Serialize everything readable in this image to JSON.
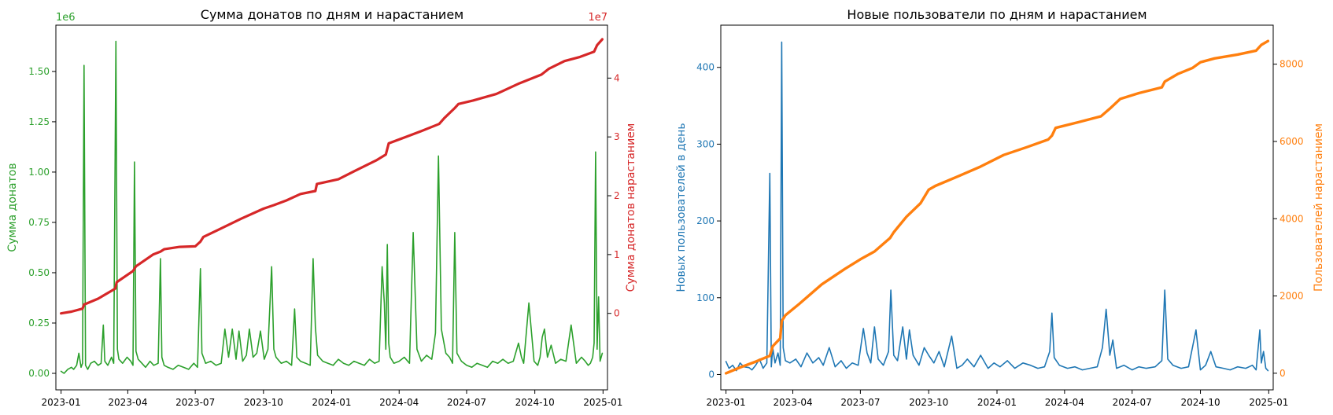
{
  "chart_data": [
    {
      "type": "line",
      "title": "Сумма донатов по дням и нарастанием",
      "xlabel": "",
      "ylabel_left": "Сумма донатов",
      "ylabel_right": "Сумма донатов нарастанием",
      "left_axis_multiplier": "1e6",
      "right_axis_multiplier": "1e7",
      "left_axis_color": "#2ca02c",
      "right_axis_color": "#d62728",
      "x_range": [
        "2022-12-25",
        "2025-01-07"
      ],
      "x_ticks": [
        "2023-01",
        "2023-04",
        "2023-07",
        "2023-10",
        "2024-01",
        "2024-04",
        "2024-07",
        "2024-10",
        "2025-01"
      ],
      "ylim_left": [
        -0.082,
        1.73
      ],
      "yticks_left": [
        "0.00",
        "0.25",
        "0.50",
        "0.75",
        "1.00",
        "1.25",
        "1.50"
      ],
      "ylim_right": [
        -1.3,
        4.9
      ],
      "yticks_right": [
        "0",
        "1",
        "2",
        "3",
        "4"
      ],
      "grid": false,
      "series": [
        {
          "axis": "left",
          "color": "#2ca02c",
          "x": [
            "2023-01-01",
            "2023-01-05",
            "2023-01-10",
            "2023-01-15",
            "2023-01-18",
            "2023-01-22",
            "2023-01-25",
            "2023-01-28",
            "2023-01-30",
            "2023-02-01",
            "2023-02-03",
            "2023-02-06",
            "2023-02-10",
            "2023-02-15",
            "2023-02-20",
            "2023-02-24",
            "2023-02-27",
            "2023-03-01",
            "2023-03-05",
            "2023-03-10",
            "2023-03-13",
            "2023-03-16",
            "2023-03-18",
            "2023-03-20",
            "2023-03-25",
            "2023-03-31",
            "2023-04-05",
            "2023-04-08",
            "2023-04-10",
            "2023-04-12",
            "2023-04-15",
            "2023-04-20",
            "2023-04-25",
            "2023-05-01",
            "2023-05-06",
            "2023-05-12",
            "2023-05-15",
            "2023-05-17",
            "2023-05-20",
            "2023-05-25",
            "2023-06-01",
            "2023-06-08",
            "2023-06-15",
            "2023-06-22",
            "2023-06-29",
            "2023-07-04",
            "2023-07-08",
            "2023-07-10",
            "2023-07-15",
            "2023-07-22",
            "2023-07-29",
            "2023-08-05",
            "2023-08-10",
            "2023-08-15",
            "2023-08-20",
            "2023-08-25",
            "2023-08-29",
            "2023-09-03",
            "2023-09-08",
            "2023-09-12",
            "2023-09-17",
            "2023-09-22",
            "2023-09-27",
            "2023-10-02",
            "2023-10-07",
            "2023-10-12",
            "2023-10-15",
            "2023-10-18",
            "2023-10-25",
            "2023-11-01",
            "2023-11-08",
            "2023-11-12",
            "2023-11-15",
            "2023-11-20",
            "2023-11-27",
            "2023-12-03",
            "2023-12-07",
            "2023-12-10",
            "2023-12-13",
            "2023-12-20",
            "2023-12-27",
            "2024-01-03",
            "2024-01-10",
            "2024-01-17",
            "2024-01-24",
            "2024-01-31",
            "2024-02-07",
            "2024-02-14",
            "2024-02-21",
            "2024-02-28",
            "2024-03-05",
            "2024-03-09",
            "2024-03-12",
            "2024-03-14",
            "2024-03-16",
            "2024-03-18",
            "2024-03-20",
            "2024-03-25",
            "2024-04-01",
            "2024-04-08",
            "2024-04-15",
            "2024-04-20",
            "2024-04-25",
            "2024-05-01",
            "2024-05-08",
            "2024-05-15",
            "2024-05-20",
            "2024-05-24",
            "2024-05-28",
            "2024-06-03",
            "2024-06-08",
            "2024-06-12",
            "2024-06-15",
            "2024-06-18",
            "2024-06-24",
            "2024-07-01",
            "2024-07-08",
            "2024-07-15",
            "2024-07-22",
            "2024-07-29",
            "2024-08-05",
            "2024-08-12",
            "2024-08-19",
            "2024-08-26",
            "2024-09-02",
            "2024-09-09",
            "2024-09-13",
            "2024-09-16",
            "2024-09-23",
            "2024-09-30",
            "2024-10-05",
            "2024-10-08",
            "2024-10-11",
            "2024-10-14",
            "2024-10-18",
            "2024-10-23",
            "2024-10-29",
            "2024-11-05",
            "2024-11-12",
            "2024-11-19",
            "2024-11-26",
            "2024-12-03",
            "2024-12-08",
            "2024-12-12",
            "2024-12-15",
            "2024-12-18",
            "2024-12-20",
            "2024-12-22",
            "2024-12-24",
            "2024-12-26",
            "2024-12-28",
            "2024-12-31"
          ],
          "y": [
            0.01,
            0.0,
            0.02,
            0.03,
            0.02,
            0.04,
            0.1,
            0.03,
            0.05,
            1.53,
            0.04,
            0.02,
            0.05,
            0.06,
            0.04,
            0.05,
            0.24,
            0.06,
            0.04,
            0.08,
            0.05,
            1.65,
            0.12,
            0.07,
            0.05,
            0.08,
            0.06,
            0.04,
            1.05,
            0.11,
            0.07,
            0.05,
            0.03,
            0.06,
            0.04,
            0.05,
            0.57,
            0.08,
            0.04,
            0.03,
            0.02,
            0.04,
            0.03,
            0.02,
            0.05,
            0.03,
            0.52,
            0.1,
            0.05,
            0.06,
            0.04,
            0.05,
            0.22,
            0.08,
            0.22,
            0.07,
            0.21,
            0.06,
            0.09,
            0.22,
            0.08,
            0.1,
            0.21,
            0.07,
            0.12,
            0.53,
            0.12,
            0.08,
            0.05,
            0.06,
            0.04,
            0.32,
            0.08,
            0.06,
            0.05,
            0.04,
            0.57,
            0.23,
            0.09,
            0.06,
            0.05,
            0.04,
            0.07,
            0.05,
            0.04,
            0.06,
            0.05,
            0.04,
            0.07,
            0.05,
            0.06,
            0.53,
            0.35,
            0.12,
            0.64,
            0.15,
            0.08,
            0.05,
            0.06,
            0.08,
            0.05,
            0.7,
            0.12,
            0.06,
            0.09,
            0.07,
            0.2,
            1.08,
            0.22,
            0.1,
            0.08,
            0.05,
            0.7,
            0.1,
            0.06,
            0.04,
            0.03,
            0.05,
            0.04,
            0.03,
            0.06,
            0.05,
            0.07,
            0.05,
            0.06,
            0.15,
            0.08,
            0.05,
            0.35,
            0.06,
            0.04,
            0.08,
            0.18,
            0.22,
            0.08,
            0.14,
            0.05,
            0.07,
            0.06,
            0.24,
            0.05,
            0.08,
            0.06,
            0.04,
            0.05,
            0.08,
            0.15,
            1.1,
            0.12,
            0.38,
            0.06,
            0.1
          ]
        },
        {
          "axis": "right",
          "color": "#d62728",
          "x": [
            "2023-01-01",
            "2023-01-15",
            "2023-01-30",
            "2023-02-01",
            "2023-02-20",
            "2023-03-15",
            "2023-03-17",
            "2023-04-08",
            "2023-04-12",
            "2023-05-05",
            "2023-05-15",
            "2023-05-20",
            "2023-06-10",
            "2023-07-01",
            "2023-07-08",
            "2023-07-12",
            "2023-08-01",
            "2023-09-01",
            "2023-10-01",
            "2023-10-15",
            "2023-11-01",
            "2023-11-20",
            "2023-12-10",
            "2023-12-12",
            "2024-01-10",
            "2024-02-01",
            "2024-03-01",
            "2024-03-14",
            "2024-03-18",
            "2024-04-10",
            "2024-05-01",
            "2024-05-25",
            "2024-06-01",
            "2024-06-15",
            "2024-06-20",
            "2024-07-10",
            "2024-08-10",
            "2024-09-10",
            "2024-10-10",
            "2024-10-20",
            "2024-11-10",
            "2024-12-01",
            "2024-12-20",
            "2024-12-24",
            "2024-12-31"
          ],
          "y": [
            0.0,
            0.03,
            0.08,
            0.15,
            0.25,
            0.42,
            0.53,
            0.72,
            0.8,
            1.0,
            1.05,
            1.09,
            1.13,
            1.14,
            1.22,
            1.3,
            1.42,
            1.61,
            1.78,
            1.84,
            1.92,
            2.03,
            2.08,
            2.2,
            2.28,
            2.42,
            2.6,
            2.7,
            2.89,
            3.0,
            3.1,
            3.22,
            3.32,
            3.49,
            3.56,
            3.62,
            3.73,
            3.91,
            4.06,
            4.16,
            4.29,
            4.36,
            4.45,
            4.56,
            4.66
          ]
        }
      ]
    },
    {
      "type": "line",
      "title": "Новые пользователи по дням и нарастанием",
      "xlabel": "",
      "ylabel_left": "Новых пользователей в день",
      "ylabel_right": "Пользователей нарастанием",
      "left_axis_color": "#1f77b4",
      "right_axis_color": "#ff7f0e",
      "x_range": [
        "2022-12-25",
        "2025-01-07"
      ],
      "x_ticks": [
        "2023-01",
        "2023-04",
        "2023-07",
        "2023-10",
        "2024-01",
        "2024-04",
        "2024-07",
        "2024-10",
        "2025-01"
      ],
      "ylim_left": [
        -20,
        455
      ],
      "yticks_left": [
        "0",
        "100",
        "200",
        "300",
        "400"
      ],
      "ylim_right": [
        -430,
        9010
      ],
      "yticks_right": [
        "0",
        "2000",
        "4000",
        "6000",
        "8000"
      ],
      "grid": false,
      "series": [
        {
          "axis": "left",
          "color": "#1f77b4",
          "x": [
            "2023-01-01",
            "2023-01-05",
            "2023-01-10",
            "2023-01-15",
            "2023-01-20",
            "2023-01-25",
            "2023-02-01",
            "2023-02-05",
            "2023-02-10",
            "2023-02-15",
            "2023-02-20",
            "2023-02-25",
            "2023-03-01",
            "2023-03-03",
            "2023-03-05",
            "2023-03-08",
            "2023-03-12",
            "2023-03-15",
            "2023-03-17",
            "2023-03-19",
            "2023-03-22",
            "2023-03-28",
            "2023-04-05",
            "2023-04-12",
            "2023-04-20",
            "2023-04-28",
            "2023-05-06",
            "2023-05-12",
            "2023-05-20",
            "2023-05-28",
            "2023-06-05",
            "2023-06-12",
            "2023-06-20",
            "2023-06-28",
            "2023-07-05",
            "2023-07-10",
            "2023-07-15",
            "2023-07-20",
            "2023-07-25",
            "2023-08-01",
            "2023-08-08",
            "2023-08-11",
            "2023-08-15",
            "2023-08-20",
            "2023-08-27",
            "2023-09-01",
            "2023-09-05",
            "2023-09-10",
            "2023-09-18",
            "2023-09-25",
            "2023-10-01",
            "2023-10-08",
            "2023-10-15",
            "2023-10-22",
            "2023-11-01",
            "2023-11-08",
            "2023-11-15",
            "2023-11-22",
            "2023-12-01",
            "2023-12-10",
            "2023-12-20",
            "2023-12-28",
            "2024-01-05",
            "2024-01-15",
            "2024-01-25",
            "2024-02-05",
            "2024-02-15",
            "2024-02-25",
            "2024-03-05",
            "2024-03-12",
            "2024-03-15",
            "2024-03-18",
            "2024-03-25",
            "2024-04-05",
            "2024-04-15",
            "2024-04-25",
            "2024-05-05",
            "2024-05-15",
            "2024-05-22",
            "2024-05-27",
            "2024-06-01",
            "2024-06-05",
            "2024-06-10",
            "2024-06-20",
            "2024-07-01",
            "2024-07-10",
            "2024-07-20",
            "2024-08-01",
            "2024-08-10",
            "2024-08-14",
            "2024-08-18",
            "2024-08-25",
            "2024-09-05",
            "2024-09-15",
            "2024-09-25",
            "2024-10-01",
            "2024-10-08",
            "2024-10-15",
            "2024-10-22",
            "2024-11-01",
            "2024-11-10",
            "2024-11-20",
            "2024-12-01",
            "2024-12-10",
            "2024-12-15",
            "2024-12-20",
            "2024-12-22",
            "2024-12-25",
            "2024-12-28",
            "2024-12-31"
          ],
          "y": [
            17,
            8,
            12,
            5,
            15,
            10,
            9,
            6,
            12,
            20,
            8,
            15,
            262,
            10,
            35,
            15,
            28,
            12,
            433,
            35,
            18,
            15,
            20,
            10,
            28,
            15,
            22,
            12,
            35,
            10,
            18,
            8,
            15,
            12,
            60,
            28,
            15,
            62,
            20,
            12,
            30,
            110,
            25,
            18,
            62,
            20,
            58,
            25,
            12,
            35,
            25,
            15,
            30,
            10,
            50,
            8,
            12,
            20,
            10,
            25,
            8,
            15,
            10,
            18,
            8,
            15,
            12,
            8,
            10,
            30,
            80,
            22,
            12,
            8,
            10,
            6,
            8,
            10,
            35,
            85,
            25,
            45,
            8,
            12,
            6,
            10,
            8,
            10,
            18,
            110,
            20,
            12,
            8,
            10,
            58,
            6,
            12,
            30,
            10,
            8,
            6,
            10,
            8,
            12,
            6,
            58,
            15,
            30,
            8,
            5
          ]
        },
        {
          "axis": "right",
          "color": "#ff7f0e",
          "x": [
            "2023-01-01",
            "2023-01-20",
            "2023-02-10",
            "2023-03-01",
            "2023-03-05",
            "2023-03-15",
            "2023-03-17",
            "2023-03-22",
            "2023-04-10",
            "2023-05-10",
            "2023-06-10",
            "2023-07-01",
            "2023-07-20",
            "2023-08-10",
            "2023-08-15",
            "2023-09-01",
            "2023-09-20",
            "2023-10-01",
            "2023-10-10",
            "2023-11-10",
            "2023-12-10",
            "2024-01-10",
            "2024-02-10",
            "2024-03-10",
            "2024-03-15",
            "2024-03-20",
            "2024-04-20",
            "2024-05-20",
            "2024-06-01",
            "2024-06-15",
            "2024-07-10",
            "2024-08-10",
            "2024-08-14",
            "2024-09-01",
            "2024-09-20",
            "2024-10-01",
            "2024-10-20",
            "2024-11-20",
            "2024-12-15",
            "2024-12-22",
            "2024-12-31"
          ],
          "y": [
            0,
            150,
            300,
            450,
            700,
            900,
            1350,
            1500,
            1800,
            2300,
            2700,
            2950,
            3150,
            3500,
            3650,
            4050,
            4400,
            4750,
            4850,
            5100,
            5350,
            5650,
            5850,
            6050,
            6150,
            6350,
            6500,
            6650,
            6850,
            7100,
            7250,
            7400,
            7550,
            7750,
            7900,
            8050,
            8150,
            8250,
            8350,
            8500,
            8600
          ]
        }
      ]
    }
  ]
}
